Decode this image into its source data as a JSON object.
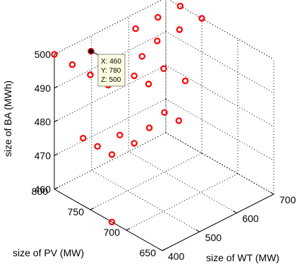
{
  "chart_data": {
    "type": "scatter",
    "title": "",
    "xlabel": "size of WT (MW)",
    "ylabel": "size of PV (MW)",
    "zlabel": "size of BA (MWh)",
    "xlim": [
      400,
      700
    ],
    "ylim": [
      650,
      800
    ],
    "zlim": [
      460,
      500
    ],
    "x_ticks": [
      "400",
      "500",
      "600",
      "700"
    ],
    "y_ticks": [
      "650",
      "700",
      "750",
      "800"
    ],
    "z_ticks": [
      "460",
      "470",
      "480",
      "490",
      "500"
    ],
    "grid": true,
    "marker_color": "#ff0000",
    "highlight_color": "#000000",
    "points": [
      {
        "x": 400,
        "y": 800,
        "z": 500
      },
      {
        "x": 400,
        "y": 775,
        "z": 500
      },
      {
        "x": 400,
        "y": 750,
        "z": 500
      },
      {
        "x": 400,
        "y": 725,
        "z": 500
      },
      {
        "x": 460,
        "y": 780,
        "z": 500
      },
      {
        "x": 460,
        "y": 740,
        "z": 500
      },
      {
        "x": 460,
        "y": 720,
        "z": 500
      },
      {
        "x": 460,
        "y": 700,
        "z": 500
      },
      {
        "x": 520,
        "y": 740,
        "z": 500
      },
      {
        "x": 520,
        "y": 710,
        "z": 500
      },
      {
        "x": 520,
        "y": 680,
        "z": 500
      },
      {
        "x": 580,
        "y": 780,
        "z": 500
      },
      {
        "x": 580,
        "y": 750,
        "z": 500
      },
      {
        "x": 640,
        "y": 780,
        "z": 500
      },
      {
        "x": 640,
        "y": 750,
        "z": 500
      },
      {
        "x": 700,
        "y": 780,
        "z": 500
      },
      {
        "x": 700,
        "y": 750,
        "z": 500
      },
      {
        "x": 400,
        "y": 760,
        "z": 480
      },
      {
        "x": 400,
        "y": 740,
        "z": 480
      },
      {
        "x": 400,
        "y": 720,
        "z": 480
      },
      {
        "x": 460,
        "y": 740,
        "z": 480
      },
      {
        "x": 460,
        "y": 720,
        "z": 480
      },
      {
        "x": 520,
        "y": 730,
        "z": 480
      },
      {
        "x": 580,
        "y": 740,
        "z": 480
      },
      {
        "x": 580,
        "y": 720,
        "z": 480
      },
      {
        "x": 400,
        "y": 720,
        "z": 460
      }
    ],
    "highlight_index": 4,
    "datatip": {
      "lines": [
        "X: 460",
        "Y: 780",
        "Z: 500"
      ]
    }
  }
}
